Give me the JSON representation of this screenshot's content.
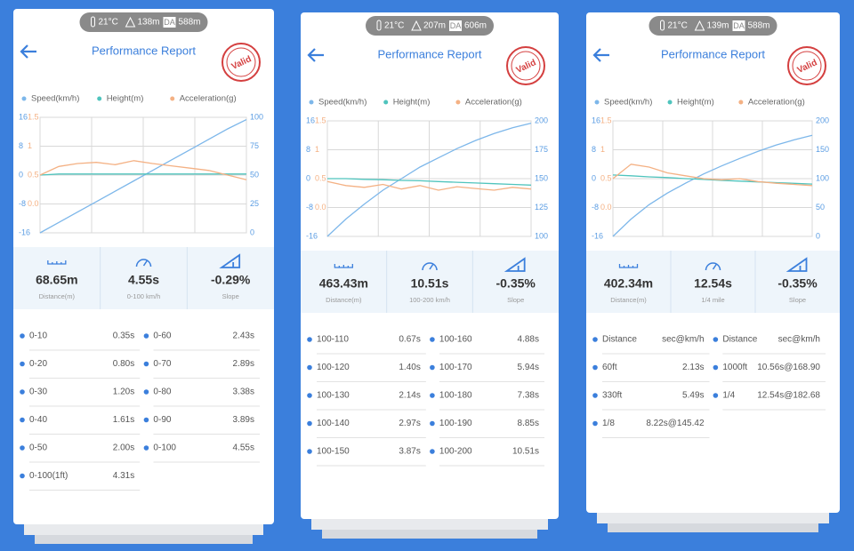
{
  "screens": [
    {
      "badge": {
        "temperature": "21°C",
        "altitude": "138m",
        "da_tag": "DA",
        "density_altitude": "588m"
      },
      "title": "Performance Report",
      "stamp": "Valid",
      "chart": {
        "type": "line",
        "axes": {
          "height": {
            "lim": [
              -16,
              16
            ],
            "ticks": [
              16,
              8,
              0,
              -8,
              -16
            ],
            "color": "#5b9de3"
          },
          "accel": {
            "lim": [
              -0.5,
              1.5
            ],
            "ticks": [
              1.5,
              1,
              0.5,
              {
                "value": 0,
                "label": "0.0"
              }
            ],
            "color": "#f4b184"
          },
          "speed": {
            "lim": [
              0,
              100
            ],
            "ticks": [
              100,
              75,
              50,
              25,
              0
            ],
            "color": "#5b9de3"
          }
        },
        "series": [
          {
            "name": "Speed(km/h)",
            "color": "#7db7ea",
            "axis": "speed",
            "values": [
              0,
              9,
              18,
              27,
              36,
              45,
              54,
              63,
              72,
              81,
              90,
              98
            ]
          },
          {
            "name": "Height(m)",
            "color": "#4fc4bd",
            "axis": "height",
            "values": [
              0,
              0.3,
              0.3,
              0.3,
              0.3,
              0.3,
              0.3,
              0.3,
              0.3,
              0.3,
              0.3,
              0.3
            ]
          },
          {
            "name": "Acceleration(g)",
            "color": "#f4b184",
            "axis": "accel",
            "values": [
              0.5,
              0.65,
              0.7,
              0.72,
              0.68,
              0.75,
              0.7,
              0.66,
              0.62,
              0.58,
              0.5,
              0.42
            ]
          }
        ]
      },
      "stats": [
        {
          "value": "68.65m",
          "label": "Distance(m)"
        },
        {
          "value": "4.55s",
          "label": "0-100 km/h"
        },
        {
          "value": "-0.29%",
          "label": "Slope"
        }
      ],
      "results": [
        [
          {
            "label": "0-10",
            "value": "0.35s"
          },
          {
            "label": "0-60",
            "value": "2.43s"
          }
        ],
        [
          {
            "label": "0-20",
            "value": "0.80s"
          },
          {
            "label": "0-70",
            "value": "2.89s"
          }
        ],
        [
          {
            "label": "0-30",
            "value": "1.20s"
          },
          {
            "label": "0-80",
            "value": "3.38s"
          }
        ],
        [
          {
            "label": "0-40",
            "value": "1.61s"
          },
          {
            "label": "0-90",
            "value": "3.89s"
          }
        ],
        [
          {
            "label": "0-50",
            "value": "2.00s"
          },
          {
            "label": "0-100",
            "value": "4.55s"
          }
        ],
        [
          {
            "label": "0-100(1ft)",
            "value": "4.31s"
          }
        ]
      ]
    },
    {
      "badge": {
        "temperature": "21°C",
        "altitude": "207m",
        "da_tag": "DA",
        "density_altitude": "606m"
      },
      "title": "Performance Report",
      "stamp": "Valid",
      "chart": {
        "type": "line",
        "axes": {
          "height": {
            "lim": [
              -16,
              16
            ],
            "ticks": [
              16,
              8,
              0,
              -8,
              -16
            ],
            "color": "#5b9de3"
          },
          "accel": {
            "lim": [
              -0.5,
              1.5
            ],
            "ticks": [
              1.5,
              1,
              0.5,
              {
                "value": 0,
                "label": "0.0"
              }
            ],
            "color": "#f4b184"
          },
          "speed": {
            "lim": [
              100,
              200
            ],
            "ticks": [
              200,
              175,
              150,
              125,
              100
            ],
            "color": "#5b9de3"
          }
        },
        "series": [
          {
            "name": "Speed(km/h)",
            "color": "#7db7ea",
            "axis": "speed",
            "values": [
              100,
              115,
              128,
              140,
              150,
              160,
              168,
              176,
              183,
              189,
              194,
              198
            ]
          },
          {
            "name": "Height(m)",
            "color": "#4fc4bd",
            "axis": "height",
            "values": [
              0,
              0,
              -0.2,
              -0.3,
              -0.5,
              -0.6,
              -0.8,
              -1,
              -1.2,
              -1.4,
              -1.6,
              -1.8
            ]
          },
          {
            "name": "Acceleration(g)",
            "color": "#f4b184",
            "axis": "accel",
            "values": [
              0.45,
              0.38,
              0.35,
              0.4,
              0.32,
              0.38,
              0.3,
              0.36,
              0.33,
              0.3,
              0.35,
              0.32
            ]
          }
        ]
      },
      "stats": [
        {
          "value": "463.43m",
          "label": "Distance(m)"
        },
        {
          "value": "10.51s",
          "label": "100-200 km/h"
        },
        {
          "value": "-0.35%",
          "label": "Slope"
        }
      ],
      "results": [
        [
          {
            "label": "100-110",
            "value": "0.67s"
          },
          {
            "label": "100-160",
            "value": "4.88s"
          }
        ],
        [
          {
            "label": "100-120",
            "value": "1.40s"
          },
          {
            "label": "100-170",
            "value": "5.94s"
          }
        ],
        [
          {
            "label": "100-130",
            "value": "2.14s"
          },
          {
            "label": "100-180",
            "value": "7.38s"
          }
        ],
        [
          {
            "label": "100-140",
            "value": "2.97s"
          },
          {
            "label": "100-190",
            "value": "8.85s"
          }
        ],
        [
          {
            "label": "100-150",
            "value": "3.87s"
          },
          {
            "label": "100-200",
            "value": "10.51s"
          }
        ]
      ]
    },
    {
      "badge": {
        "temperature": "21°C",
        "altitude": "139m",
        "da_tag": "DA",
        "density_altitude": "588m"
      },
      "title": "Performance Report",
      "stamp": "Valid",
      "chart": {
        "type": "line",
        "axes": {
          "height": {
            "lim": [
              -16,
              16
            ],
            "ticks": [
              16,
              8,
              0,
              -8,
              -16
            ],
            "color": "#5b9de3"
          },
          "accel": {
            "lim": [
              -0.5,
              1.5
            ],
            "ticks": [
              1.5,
              1,
              0.5,
              {
                "value": 0,
                "label": "0.0"
              }
            ],
            "color": "#f4b184"
          },
          "speed": {
            "lim": [
              0,
              200
            ],
            "ticks": [
              200,
              150,
              100,
              50,
              0
            ],
            "color": "#5b9de3"
          }
        },
        "series": [
          {
            "name": "Speed(km/h)",
            "color": "#7db7ea",
            "axis": "speed",
            "values": [
              0,
              30,
              55,
              75,
              92,
              108,
              122,
              135,
              147,
              158,
              167,
              175
            ]
          },
          {
            "name": "Height(m)",
            "color": "#4fc4bd",
            "axis": "height",
            "values": [
              1,
              0.8,
              0.5,
              0.3,
              0,
              -0.2,
              -0.5,
              -0.7,
              -0.9,
              -1.1,
              -1.3,
              -1.5
            ]
          },
          {
            "name": "Acceleration(g)",
            "color": "#f4b184",
            "axis": "accel",
            "values": [
              0.5,
              0.75,
              0.7,
              0.6,
              0.55,
              0.5,
              0.48,
              0.5,
              0.45,
              0.42,
              0.4,
              0.38
            ]
          }
        ]
      },
      "stats": [
        {
          "value": "402.34m",
          "label": "Distance(m)"
        },
        {
          "value": "12.54s",
          "label": "1/4 mile"
        },
        {
          "value": "-0.35%",
          "label": "Slope"
        }
      ],
      "results": [
        [
          {
            "label": "Distance",
            "value": "sec@km/h"
          },
          {
            "label": "Distance",
            "value": "sec@km/h"
          }
        ],
        [
          {
            "label": "60ft",
            "value": "2.13s"
          },
          {
            "label": "1000ft",
            "value": "10.56s@168.90"
          }
        ],
        [
          {
            "label": "330ft",
            "value": "5.49s"
          },
          {
            "label": "1/4",
            "value": "12.54s@182.68"
          }
        ],
        [
          {
            "label": "1/8",
            "value": "8.22s@145.42"
          }
        ]
      ]
    }
  ]
}
